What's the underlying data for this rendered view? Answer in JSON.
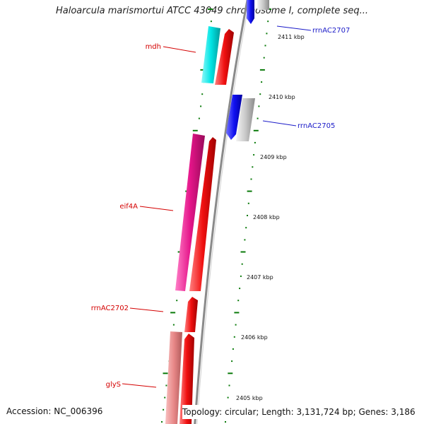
{
  "title": "Haloarcula marismortui ATCC 43049 chromosome I, complete seq...",
  "accession": "Accession: NC_006396",
  "summary": "Topology: circular; Length: 3,131,724 bp; Genes: 3,186",
  "colors": {
    "backbone": "#8a8a8a",
    "tick": "#0a7a0a",
    "forward_label": "#d40000",
    "reverse_label": "#1a1ac8",
    "mdh_fill": "#00e5e5",
    "eif4A_fill": "#e5158a",
    "glyS_fill": "#e88888",
    "cds_fill": "#f01010",
    "rrn_fill": "#1010f0",
    "grey_fill": "#c8c8c8"
  },
  "tick_labels": [
    "2411 kbp",
    "2410 kbp",
    "2409 kbp",
    "2408 kbp",
    "2407 kbp",
    "2406 kbp",
    "2405 kbp"
  ],
  "gene_labels": [
    {
      "id": "mdh",
      "text": "mdh",
      "strand": "forward"
    },
    {
      "id": "eif4A",
      "text": "eif4A",
      "strand": "forward"
    },
    {
      "id": "rrnAC2702",
      "text": "rrnAC2702",
      "strand": "forward"
    },
    {
      "id": "glyS",
      "text": "glyS",
      "strand": "forward"
    },
    {
      "id": "rrnAC2707",
      "text": "rrnAC2707",
      "strand": "reverse"
    },
    {
      "id": "rrnAC2705",
      "text": "rrnAC2705",
      "strand": "reverse"
    }
  ]
}
